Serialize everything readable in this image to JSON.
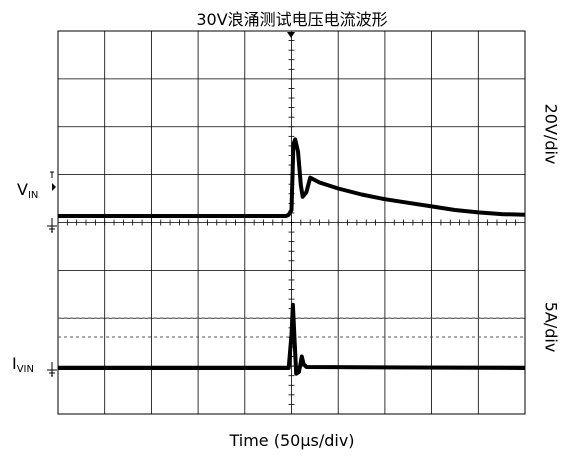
{
  "title": "30V浪涌测试电压电流波形",
  "x_label": "Time (50µs/div)",
  "channels": {
    "voltage": {
      "label_main": "V",
      "label_sub": "IN",
      "scale": "20V/div"
    },
    "current": {
      "label_main": "I",
      "label_sub": "VIN",
      "scale": "5A/div"
    }
  },
  "colors": {
    "trace": "#000000",
    "grid": "#000000",
    "dashed": "#555555"
  },
  "chart_data": {
    "type": "line",
    "title": "30V浪涌测试电压电流波形",
    "xlabel": "Time (50µs/div)",
    "x_unit": "µs",
    "xlim": [
      -250,
      250
    ],
    "grid": true,
    "divisions": {
      "x": 10,
      "y": 8
    },
    "series": [
      {
        "name": "VIN",
        "scale": "20V/div",
        "unit": "V",
        "points": [
          [
            -250,
            0
          ],
          [
            -6,
            0
          ],
          [
            -3,
            0.5
          ],
          [
            0,
            2.5
          ],
          [
            2,
            30
          ],
          [
            4,
            32
          ],
          [
            7,
            27
          ],
          [
            10,
            13
          ],
          [
            12,
            8
          ],
          [
            16,
            10
          ],
          [
            20,
            16
          ],
          [
            30,
            14
          ],
          [
            50,
            11.5
          ],
          [
            75,
            9
          ],
          [
            100,
            7
          ],
          [
            125,
            5.5
          ],
          [
            150,
            4
          ],
          [
            175,
            2.5
          ],
          [
            200,
            1.5
          ],
          [
            225,
            0.8
          ],
          [
            250,
            0.5
          ]
        ]
      },
      {
        "name": "IVIN",
        "scale": "5A/div",
        "unit": "A",
        "points": [
          [
            -250,
            0
          ],
          [
            -3,
            0
          ],
          [
            0,
            3.5
          ],
          [
            1.5,
            6.6
          ],
          [
            3,
            3.5
          ],
          [
            5,
            -0.6
          ],
          [
            8,
            -0.4
          ],
          [
            11,
            1.2
          ],
          [
            13,
            0.4
          ],
          [
            16,
            0.1
          ],
          [
            250,
            0
          ]
        ]
      }
    ]
  }
}
